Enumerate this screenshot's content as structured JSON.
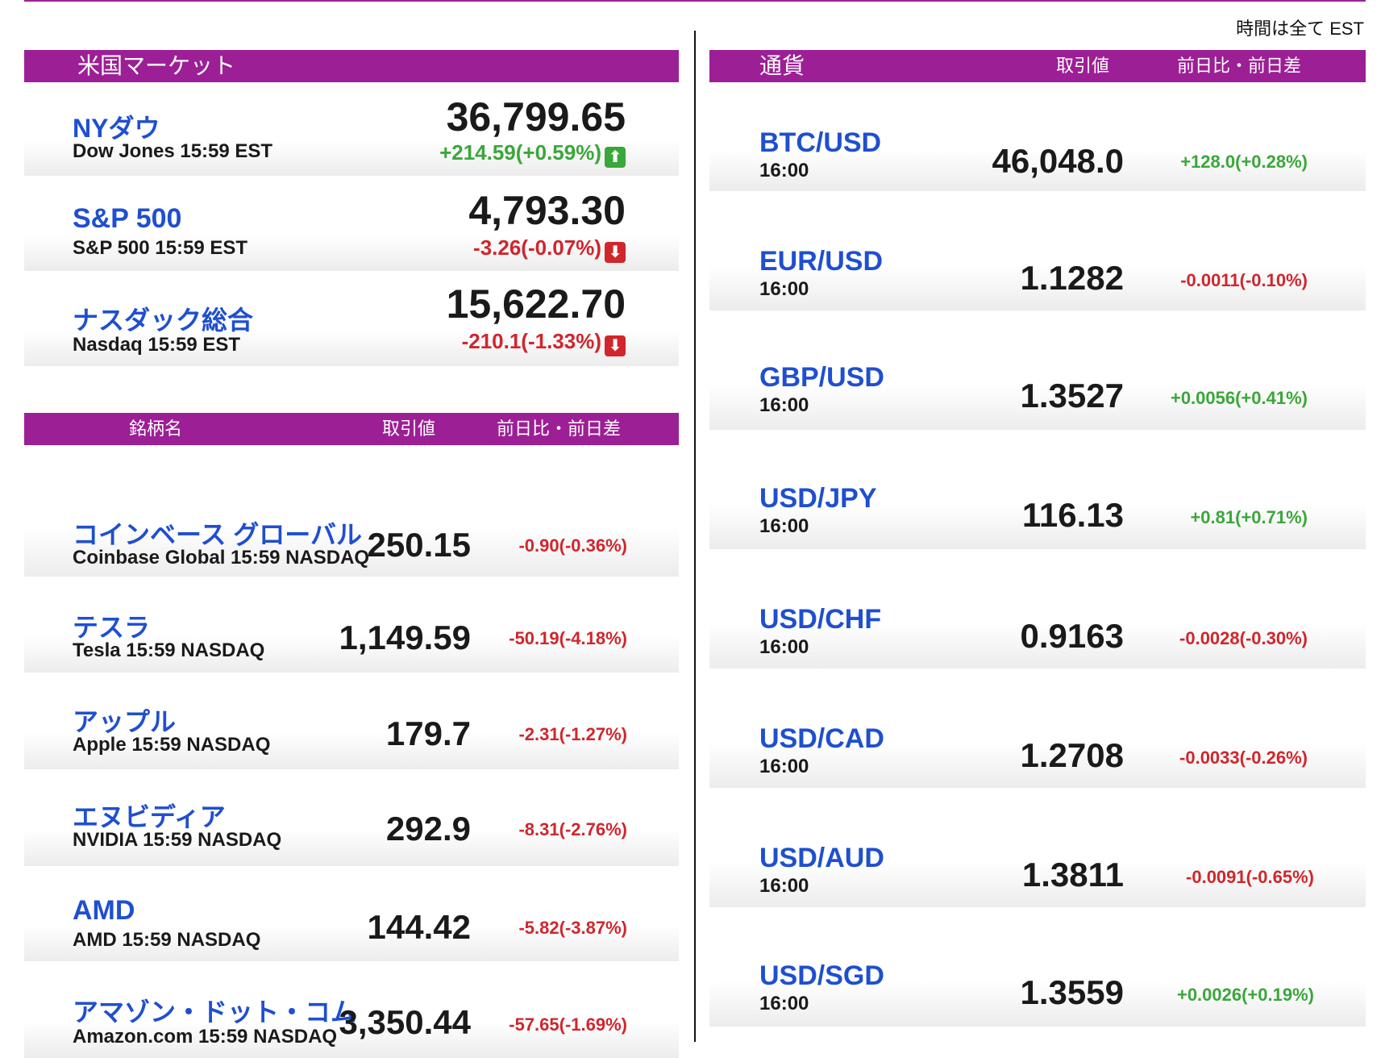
{
  "timezone_note": "時間は全て EST",
  "us_market": {
    "header": "米国マーケット",
    "indices": [
      {
        "name": "NYダウ",
        "sub": "Dow Jones 15:59 EST",
        "value": "36,799.65",
        "change": "+214.59(+0.59%)",
        "direction": "up"
      },
      {
        "name": "S&P 500",
        "sub": "S&P 500 15:59 EST",
        "value": "4,793.30",
        "change": "-3.26(-0.07%)",
        "direction": "down"
      },
      {
        "name": "ナスダック総合",
        "sub": "Nasdaq 15:59 EST",
        "value": "15,622.70",
        "change": "-210.1(-1.33%)",
        "direction": "down"
      }
    ]
  },
  "stocks": {
    "header": {
      "name": "銘柄名",
      "value": "取引値",
      "change": "前日比・前日差"
    },
    "rows": [
      {
        "name": "コインベース グローバル",
        "sub": "Coinbase Global 15:59  NASDAQ",
        "value": "250.15",
        "change": "-0.90(-0.36%)",
        "direction": "down"
      },
      {
        "name": "テスラ",
        "sub": "Tesla 15:59  NASDAQ",
        "value": "1,149.59",
        "change": "-50.19(-4.18%)",
        "direction": "down"
      },
      {
        "name": "アップル",
        "sub": "Apple 15:59  NASDAQ",
        "value": "179.7",
        "change": "-2.31(-1.27%)",
        "direction": "down"
      },
      {
        "name": "エヌビディア",
        "sub": "NVIDIA 15:59  NASDAQ",
        "value": "292.9",
        "change": "-8.31(-2.76%)",
        "direction": "down"
      },
      {
        "name": "AMD",
        "sub": "AMD 15:59  NASDAQ",
        "value": "144.42",
        "change": "-5.82(-3.87%)",
        "direction": "down"
      },
      {
        "name": "アマゾン・ドット・コム",
        "sub": "Amazon.com 15:59  NASDAQ",
        "value": "3,350.44",
        "change": "-57.65(-1.69%)",
        "direction": "down"
      }
    ]
  },
  "currencies": {
    "header": {
      "name": "通貨",
      "value": "取引値",
      "change": "前日比・前日差"
    },
    "rows": [
      {
        "pair": "BTC/USD",
        "time": "16:00",
        "value": "46,048.0",
        "change": "+128.0(+0.28%)",
        "direction": "up"
      },
      {
        "pair": "EUR/USD",
        "time": "16:00",
        "value": "1.1282",
        "change": "-0.0011(-0.10%)",
        "direction": "down"
      },
      {
        "pair": "GBP/USD",
        "time": "16:00",
        "value": "1.3527",
        "change": "+0.0056(+0.41%)",
        "direction": "up"
      },
      {
        "pair": "USD/JPY",
        "time": "16:00",
        "value": "116.13",
        "change": "+0.81(+0.71%)",
        "direction": "up"
      },
      {
        "pair": "USD/CHF",
        "time": "16:00",
        "value": "0.9163",
        "change": "-0.0028(-0.30%)",
        "direction": "down"
      },
      {
        "pair": "USD/CAD",
        "time": "16:00",
        "value": "1.2708",
        "change": "-0.0033(-0.26%)",
        "direction": "down"
      },
      {
        "pair": "USD/AUD",
        "time": "16:00",
        "value": "1.3811",
        "change": "-0.0091(-0.65%)",
        "direction": "down"
      },
      {
        "pair": "USD/SGD",
        "time": "16:00",
        "value": "1.3559",
        "change": "+0.0026(+0.19%)",
        "direction": "up"
      }
    ]
  },
  "colors": {
    "header_bg": "#9c1f96",
    "name_blue": "#1f4fd0",
    "up": "#3aa73a",
    "down": "#d0262c"
  },
  "icons": {
    "up": "arrow-up-icon",
    "down": "arrow-down-icon"
  }
}
